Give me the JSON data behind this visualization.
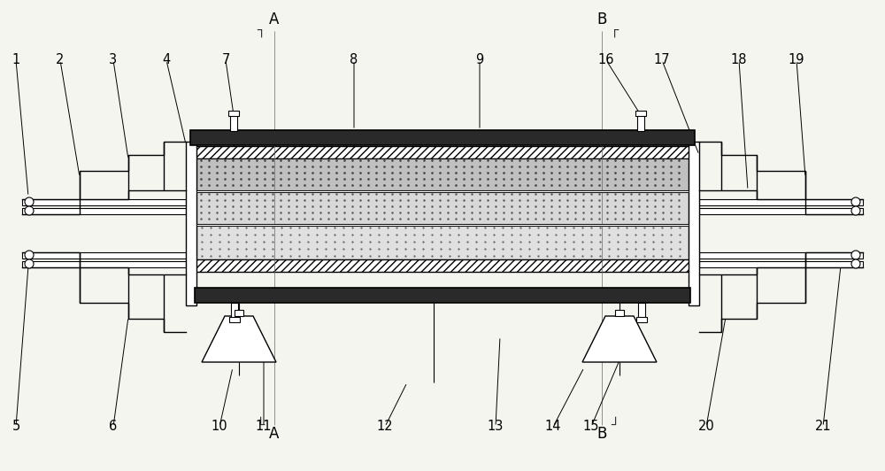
{
  "bg_color": "#f5f5f0",
  "line_color": "#000000",
  "dark_fill": "#2a2a2a",
  "fig_width": 10.0,
  "fig_height": 5.32,
  "label_items": [
    [
      "1",
      18,
      60
    ],
    [
      "2",
      68,
      60
    ],
    [
      "3",
      130,
      60
    ],
    [
      "4",
      188,
      60
    ],
    [
      "5",
      18,
      490
    ],
    [
      "6",
      130,
      490
    ],
    [
      "7",
      258,
      60
    ],
    [
      "8",
      400,
      60
    ],
    [
      "9",
      540,
      60
    ],
    [
      "10",
      248,
      490
    ],
    [
      "11",
      298,
      490
    ],
    [
      "12",
      435,
      490
    ],
    [
      "13",
      560,
      490
    ],
    [
      "14",
      625,
      490
    ],
    [
      "15",
      668,
      490
    ],
    [
      "16",
      685,
      60
    ],
    [
      "17",
      748,
      60
    ],
    [
      "18",
      835,
      60
    ],
    [
      "19",
      900,
      60
    ],
    [
      "20",
      798,
      490
    ],
    [
      "21",
      930,
      490
    ]
  ]
}
